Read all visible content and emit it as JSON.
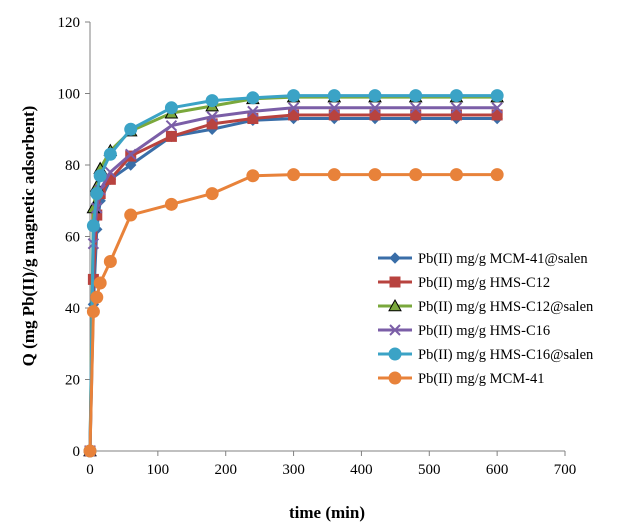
{
  "chart_data": {
    "type": "line",
    "title": "",
    "xlabel": "time (min)",
    "ylabel": "Q (mg Pb(II)/g magnetic adsorbent)",
    "xlim": [
      0,
      700
    ],
    "ylim": [
      0,
      120
    ],
    "xticks": [
      0,
      100,
      200,
      300,
      400,
      500,
      600,
      700
    ],
    "yticks": [
      0,
      20,
      40,
      60,
      80,
      100,
      120
    ],
    "grid": false,
    "legend_position": "right",
    "series": [
      {
        "name": "Pb(II) mg/g MCM-41@salen",
        "color": "#3a6ea8",
        "marker": "diamond",
        "x": [
          0,
          5,
          10,
          15,
          30,
          60,
          120,
          180,
          240,
          300,
          360,
          420,
          480,
          540,
          600
        ],
        "y": [
          0,
          41,
          62,
          70,
          76,
          80,
          88,
          90,
          92.5,
          93,
          93,
          93,
          93,
          93,
          93
        ]
      },
      {
        "name": "Pb(II) mg/g HMS-C12",
        "color": "#b8433f",
        "marker": "square",
        "x": [
          0,
          5,
          10,
          15,
          30,
          60,
          120,
          180,
          240,
          300,
          360,
          420,
          480,
          540,
          600
        ],
        "y": [
          0,
          48,
          66,
          72,
          76,
          82.5,
          88,
          91.5,
          93,
          94,
          94,
          94,
          94,
          94,
          94
        ]
      },
      {
        "name": "Pb(II) mg/g HMS-C12@salen",
        "color": "#7aa83c",
        "marker": "triangle",
        "x": [
          0,
          5,
          10,
          15,
          30,
          60,
          120,
          180,
          240,
          300,
          360,
          420,
          480,
          540,
          600
        ],
        "y": [
          0,
          68,
          74,
          79,
          84,
          89.5,
          94.5,
          96.5,
          98.5,
          99,
          99,
          99,
          99,
          99,
          99
        ]
      },
      {
        "name": "Pb(II) mg/g HMS-C16",
        "color": "#7b5ea7",
        "marker": "x",
        "x": [
          0,
          5,
          10,
          15,
          30,
          60,
          120,
          180,
          240,
          300,
          360,
          420,
          480,
          540,
          600
        ],
        "y": [
          0,
          58,
          68,
          73,
          78,
          83,
          91,
          93.5,
          95,
          96,
          96,
          96,
          96,
          96,
          96
        ]
      },
      {
        "name": "Pb(II) mg/g HMS-C16@salen",
        "color": "#3ba3c6",
        "marker": "circle",
        "x": [
          0,
          5,
          10,
          15,
          30,
          60,
          120,
          180,
          240,
          300,
          360,
          420,
          480,
          540,
          600
        ],
        "y": [
          0,
          63,
          72,
          77,
          83,
          90,
          96,
          98,
          98.8,
          99.4,
          99.4,
          99.4,
          99.4,
          99.4,
          99.4
        ]
      },
      {
        "name": "Pb(II) mg/g MCM-41",
        "color": "#e8823a",
        "marker": "circle",
        "x": [
          0,
          5,
          10,
          15,
          30,
          60,
          120,
          180,
          240,
          300,
          360,
          420,
          480,
          540,
          600
        ],
        "y": [
          0,
          39,
          43,
          47,
          53,
          66,
          69,
          72,
          77,
          77.3,
          77.3,
          77.3,
          77.3,
          77.3,
          77.3
        ]
      }
    ]
  }
}
